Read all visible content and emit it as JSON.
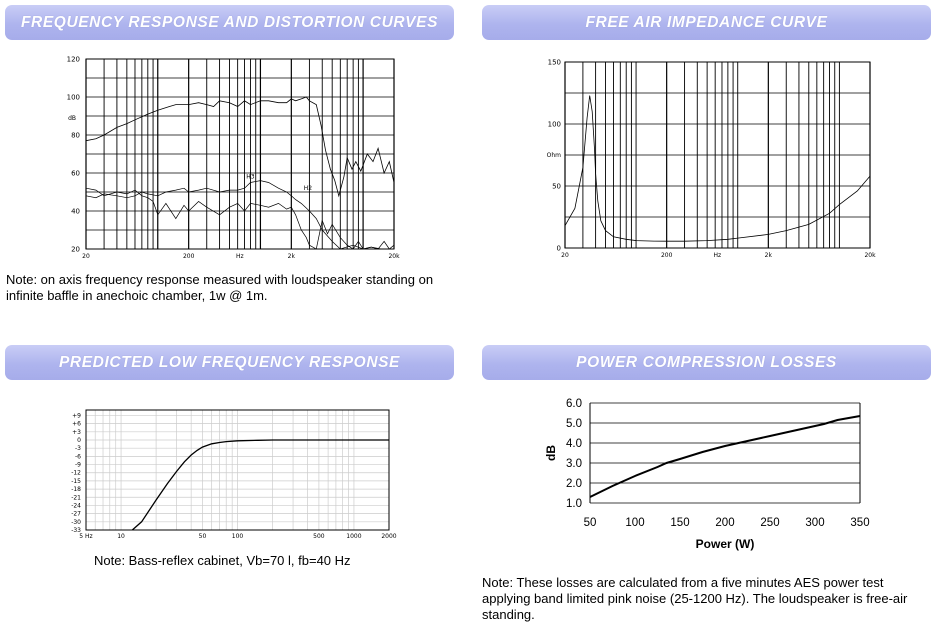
{
  "sections": {
    "freq": {
      "title": "FREQUENCY RESPONSE AND DISTORTION CURVES",
      "note": "Note: on axis frequency response measured with loudspeaker standing on infinite baffle in anechoic chamber, 1w @ 1m."
    },
    "imp": {
      "title": "FREE AIR IMPEDANCE CURVE"
    },
    "lf": {
      "title": "PREDICTED LOW FREQUENCY RESPONSE",
      "note": "Note: Bass-reflex cabinet, Vb=70 l, fb=40 Hz"
    },
    "pc": {
      "title": "POWER COMPRESSION LOSSES",
      "note": "Note: These losses are calculated from a five minutes AES power test applying band limited pink noise (25-1200 Hz). The loudspeaker is free-air standing."
    }
  },
  "chart_data": [
    {
      "id": "freq",
      "type": "line",
      "title": "Frequency response and distortion curves",
      "ylabel": "dB",
      "xscale": "log",
      "xlim": [
        20,
        20000
      ],
      "ylim": [
        20,
        120
      ],
      "yticks": [
        "120",
        "100",
        "80",
        "60",
        "40",
        "20"
      ],
      "xticks": [
        "20",
        "200",
        "Hz",
        "2k",
        "20k"
      ],
      "labels": [
        "H3",
        "H2"
      ],
      "series": [
        {
          "name": "Frequency response",
          "x": [
            20,
            25,
            30,
            40,
            50,
            60,
            80,
            100,
            130,
            150,
            200,
            250,
            300,
            350,
            400,
            500,
            600,
            700,
            800,
            1000,
            1200,
            1500,
            1800,
            2000,
            2200,
            2500,
            2800,
            3000,
            3500,
            3900,
            4300,
            4800,
            5300,
            5800,
            6500,
            7000,
            7800,
            8500,
            9500,
            11000,
            12500,
            14000,
            16000,
            18000,
            20000
          ],
          "y": [
            77,
            78,
            80,
            84,
            86,
            88,
            91,
            93,
            95,
            96,
            96,
            97,
            96,
            95,
            98,
            97,
            95,
            98,
            96,
            98,
            98,
            97,
            97,
            99,
            98,
            99,
            100,
            98,
            96,
            85,
            72,
            62,
            56,
            48,
            58,
            68,
            62,
            66,
            61,
            70,
            66,
            73,
            60,
            66,
            55
          ]
        },
        {
          "name": "H2",
          "x": [
            20,
            25,
            30,
            40,
            50,
            60,
            70,
            80,
            90,
            100,
            120,
            150,
            180,
            200,
            250,
            300,
            400,
            500,
            600,
            700,
            800,
            1000,
            1200,
            1500,
            1800,
            2000,
            2200,
            2500,
            2800,
            3000,
            3500,
            4000,
            4500,
            5000,
            6000,
            7000,
            8000,
            9000,
            10000,
            12000,
            14000,
            16000,
            18000,
            20000
          ],
          "y": [
            52,
            51,
            48,
            50,
            49,
            51,
            48,
            47,
            45,
            38,
            44,
            36,
            43,
            40,
            45,
            42,
            38,
            42,
            44,
            40,
            44,
            43,
            42,
            44,
            41,
            42,
            38,
            30,
            26,
            22,
            20,
            35,
            28,
            33,
            26,
            22,
            20,
            24,
            20,
            21,
            20,
            24,
            20,
            22
          ]
        },
        {
          "name": "H3",
          "x": [
            20,
            25,
            30,
            40,
            50,
            60,
            70,
            80,
            100,
            120,
            150,
            180,
            200,
            250,
            300,
            400,
            500,
            600,
            700,
            800,
            1000,
            1200,
            1500,
            1800,
            2000,
            2200,
            2500,
            3000,
            3500,
            4000,
            5000,
            6000,
            8000,
            10000,
            12000,
            15000,
            20000
          ],
          "y": [
            48,
            47,
            49,
            48,
            47,
            48,
            50,
            49,
            48,
            50,
            51,
            52,
            50,
            51,
            52,
            50,
            51,
            51,
            52,
            55,
            56,
            55,
            52,
            50,
            48,
            46,
            44,
            40,
            36,
            30,
            24,
            20,
            22,
            20,
            21,
            20,
            20
          ]
        }
      ]
    },
    {
      "id": "imp",
      "type": "line",
      "title": "Free air impedance curve",
      "ylabel": "Ohm",
      "xscale": "log",
      "xlim": [
        20,
        20000
      ],
      "ylim": [
        0,
        150
      ],
      "yticks": [
        "150",
        "100",
        "50",
        "0"
      ],
      "xticks": [
        "20",
        "200",
        "Hz",
        "2k",
        "20k"
      ],
      "series": [
        {
          "name": "Impedance",
          "x": [
            20,
            25,
            30,
            33,
            35,
            37,
            39,
            40,
            42,
            45,
            50,
            60,
            80,
            100,
            150,
            200,
            300,
            500,
            800,
            1000,
            2000,
            3000,
            5000,
            8000,
            10000,
            15000,
            20000
          ],
          "y": [
            18,
            32,
            65,
            105,
            123,
            110,
            80,
            60,
            38,
            22,
            14,
            9,
            7,
            6,
            5.6,
            5.5,
            5.5,
            6,
            7,
            8,
            11,
            14,
            19,
            28,
            35,
            46,
            58
          ]
        }
      ]
    },
    {
      "id": "lf",
      "type": "line",
      "title": "Predicted low frequency response",
      "xscale": "log",
      "xlim": [
        5,
        2000
      ],
      "ylim": [
        -33,
        11
      ],
      "yticks": [
        "+9",
        "+6",
        "+3",
        "0",
        "-3",
        "-6",
        "-9",
        "-12",
        "-15",
        "-18",
        "-21",
        "-24",
        "-27",
        "-30",
        "-33"
      ],
      "xticks": [
        "5 Hz",
        "10",
        "50",
        "100",
        "500",
        "1000",
        "2000"
      ],
      "series": [
        {
          "name": "Response",
          "x": [
            12.5,
            15,
            20,
            25,
            30,
            35,
            40,
            45,
            50,
            60,
            70,
            80,
            100,
            150,
            200,
            300,
            500,
            1000,
            2000
          ],
          "y": [
            -34,
            -30,
            -22,
            -16,
            -11.5,
            -8,
            -5.5,
            -3.8,
            -2.6,
            -1.4,
            -0.9,
            -0.6,
            -0.3,
            -0.1,
            0,
            0,
            0,
            0,
            0
          ]
        }
      ]
    },
    {
      "id": "pc",
      "type": "line",
      "title": "Power compression losses",
      "xlabel": "Power (W)",
      "ylabel": "dB",
      "xlim": [
        50,
        350
      ],
      "ylim": [
        1.0,
        6.0
      ],
      "yticks": [
        "6.0",
        "5.0",
        "4.0",
        "3.0",
        "2.0",
        "1.0"
      ],
      "xticks": [
        "50",
        "100",
        "150",
        "200",
        "250",
        "300",
        "350"
      ],
      "series": [
        {
          "name": "Compression",
          "x": [
            50,
            75,
            100,
            125,
            135,
            150,
            175,
            200,
            225,
            250,
            275,
            300,
            310,
            325,
            350
          ],
          "y": [
            1.3,
            1.85,
            2.35,
            2.8,
            3.0,
            3.2,
            3.55,
            3.85,
            4.1,
            4.35,
            4.6,
            4.85,
            4.95,
            5.15,
            5.35
          ]
        }
      ]
    }
  ]
}
